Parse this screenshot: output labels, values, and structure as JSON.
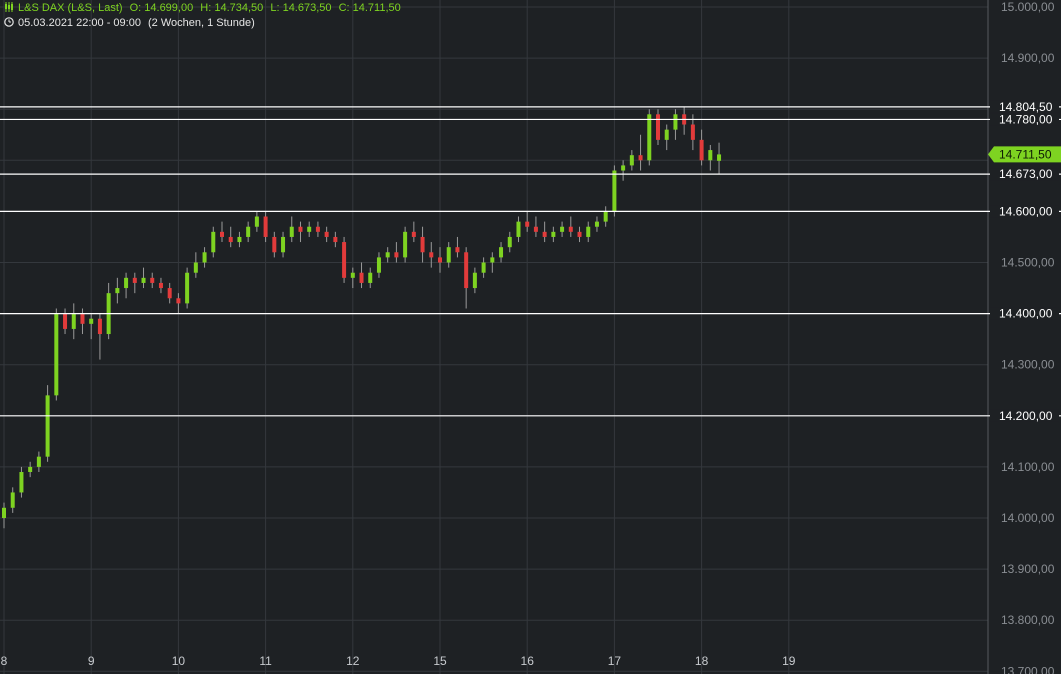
{
  "header": {
    "symbol": "L&S DAX (L&S, Last)",
    "open": "O: 14.699,00",
    "high": "H: 14.734,50",
    "low": "L: 14.673,50",
    "close": "C: 14.711,50",
    "range": "05.03.2021 22:00 - 09:00",
    "period": "(2 Wochen, 1 Stunde)",
    "symbol_icon": "candlestick-chart-icon",
    "clock_icon": "clock-icon"
  },
  "colors": {
    "background": "#1e2124",
    "grid": "#34383d",
    "up": "#7ed321",
    "down": "#e23b3b",
    "line": "#ffffff",
    "current_price_badge": "#7ed321"
  },
  "chart_data": {
    "type": "candlestick",
    "ylim": [
      13700,
      15000
    ],
    "y_ticks": [
      {
        "value": 15000,
        "label": "15.000,00"
      },
      {
        "value": 14900,
        "label": "14.900,00"
      },
      {
        "value": 14500,
        "label": "14.500,00"
      },
      {
        "value": 14300,
        "label": "14.300,00"
      },
      {
        "value": 14100,
        "label": "14.100,00"
      },
      {
        "value": 14000,
        "label": "14.000,00"
      },
      {
        "value": 13900,
        "label": "13.900,00"
      },
      {
        "value": 13800,
        "label": "13.800,00"
      },
      {
        "value": 13700,
        "label": "13.700,00"
      }
    ],
    "x_ticks": [
      {
        "label": "8",
        "index": 0
      },
      {
        "label": "9",
        "index": 10
      },
      {
        "label": "10",
        "index": 20
      },
      {
        "label": "11",
        "index": 30
      },
      {
        "label": "12",
        "index": 40
      },
      {
        "label": "15",
        "index": 50
      },
      {
        "label": "16",
        "index": 60
      },
      {
        "label": "17",
        "index": 70
      },
      {
        "label": "18",
        "index": 80
      },
      {
        "label": "19",
        "index": 90
      }
    ],
    "levels": [
      {
        "value": 14804.5,
        "label": "14.804,50"
      },
      {
        "value": 14780.0,
        "label": "14.780,00"
      },
      {
        "value": 14673.0,
        "label": "14.673,00"
      },
      {
        "value": 14600.0,
        "label": "14.600,00"
      },
      {
        "value": 14400.0,
        "label": "14.400,00"
      },
      {
        "value": 14200.0,
        "label": "14.200,00"
      }
    ],
    "current_price": {
      "value": 14711.5,
      "label": "14.711,50"
    },
    "candles": [
      [
        14000,
        14030,
        13980,
        14020
      ],
      [
        14020,
        14060,
        14010,
        14050
      ],
      [
        14050,
        14100,
        14040,
        14090
      ],
      [
        14090,
        14110,
        14080,
        14100
      ],
      [
        14100,
        14130,
        14090,
        14120
      ],
      [
        14120,
        14260,
        14110,
        14240
      ],
      [
        14240,
        14410,
        14230,
        14400
      ],
      [
        14400,
        14410,
        14360,
        14370
      ],
      [
        14370,
        14420,
        14350,
        14400
      ],
      [
        14400,
        14410,
        14360,
        14380
      ],
      [
        14380,
        14400,
        14350,
        14390
      ],
      [
        14390,
        14400,
        14310,
        14360
      ],
      [
        14360,
        14460,
        14350,
        14440
      ],
      [
        14440,
        14470,
        14420,
        14450
      ],
      [
        14450,
        14480,
        14430,
        14470
      ],
      [
        14470,
        14480,
        14440,
        14460
      ],
      [
        14460,
        14490,
        14450,
        14470
      ],
      [
        14470,
        14480,
        14450,
        14460
      ],
      [
        14460,
        14470,
        14440,
        14450
      ],
      [
        14450,
        14460,
        14420,
        14430
      ],
      [
        14430,
        14440,
        14400,
        14420
      ],
      [
        14420,
        14490,
        14410,
        14480
      ],
      [
        14480,
        14520,
        14470,
        14500
      ],
      [
        14500,
        14530,
        14490,
        14520
      ],
      [
        14520,
        14570,
        14510,
        14560
      ],
      [
        14560,
        14580,
        14540,
        14550
      ],
      [
        14550,
        14570,
        14530,
        14540
      ],
      [
        14540,
        14560,
        14530,
        14550
      ],
      [
        14550,
        14580,
        14540,
        14570
      ],
      [
        14570,
        14600,
        14560,
        14590
      ],
      [
        14590,
        14600,
        14540,
        14550
      ],
      [
        14550,
        14560,
        14510,
        14520
      ],
      [
        14520,
        14560,
        14510,
        14550
      ],
      [
        14550,
        14590,
        14540,
        14570
      ],
      [
        14570,
        14580,
        14540,
        14560
      ],
      [
        14560,
        14580,
        14550,
        14570
      ],
      [
        14570,
        14580,
        14550,
        14560
      ],
      [
        14560,
        14570,
        14540,
        14550
      ],
      [
        14550,
        14560,
        14530,
        14540
      ],
      [
        14540,
        14550,
        14460,
        14470
      ],
      [
        14470,
        14490,
        14450,
        14480
      ],
      [
        14480,
        14500,
        14450,
        14460
      ],
      [
        14460,
        14490,
        14450,
        14480
      ],
      [
        14480,
        14520,
        14470,
        14510
      ],
      [
        14510,
        14530,
        14500,
        14520
      ],
      [
        14520,
        14540,
        14500,
        14510
      ],
      [
        14510,
        14570,
        14500,
        14560
      ],
      [
        14560,
        14580,
        14540,
        14550
      ],
      [
        14550,
        14570,
        14500,
        14520
      ],
      [
        14520,
        14540,
        14490,
        14510
      ],
      [
        14510,
        14530,
        14480,
        14500
      ],
      [
        14500,
        14540,
        14490,
        14530
      ],
      [
        14530,
        14550,
        14510,
        14520
      ],
      [
        14520,
        14530,
        14410,
        14450
      ],
      [
        14450,
        14490,
        14440,
        14480
      ],
      [
        14480,
        14510,
        14470,
        14500
      ],
      [
        14500,
        14520,
        14480,
        14510
      ],
      [
        14510,
        14540,
        14500,
        14530
      ],
      [
        14530,
        14560,
        14520,
        14550
      ],
      [
        14550,
        14590,
        14540,
        14580
      ],
      [
        14580,
        14600,
        14560,
        14570
      ],
      [
        14570,
        14590,
        14550,
        14560
      ],
      [
        14560,
        14580,
        14540,
        14550
      ],
      [
        14550,
        14570,
        14540,
        14560
      ],
      [
        14560,
        14580,
        14550,
        14570
      ],
      [
        14570,
        14590,
        14550,
        14560
      ],
      [
        14560,
        14570,
        14540,
        14550
      ],
      [
        14550,
        14580,
        14540,
        14570
      ],
      [
        14570,
        14590,
        14560,
        14580
      ],
      [
        14580,
        14610,
        14570,
        14600
      ],
      [
        14600,
        14690,
        14590,
        14680
      ],
      [
        14680,
        14700,
        14660,
        14690
      ],
      [
        14690,
        14720,
        14680,
        14710
      ],
      [
        14710,
        14750,
        14680,
        14700
      ],
      [
        14700,
        14800,
        14690,
        14790
      ],
      [
        14790,
        14800,
        14730,
        14740
      ],
      [
        14740,
        14770,
        14720,
        14760
      ],
      [
        14760,
        14800,
        14740,
        14790
      ],
      [
        14790,
        14805,
        14750,
        14770
      ],
      [
        14770,
        14790,
        14720,
        14740
      ],
      [
        14740,
        14760,
        14690,
        14700
      ],
      [
        14700,
        14730,
        14680,
        14720
      ],
      [
        14699,
        14734.5,
        14673.5,
        14711.5
      ]
    ]
  }
}
